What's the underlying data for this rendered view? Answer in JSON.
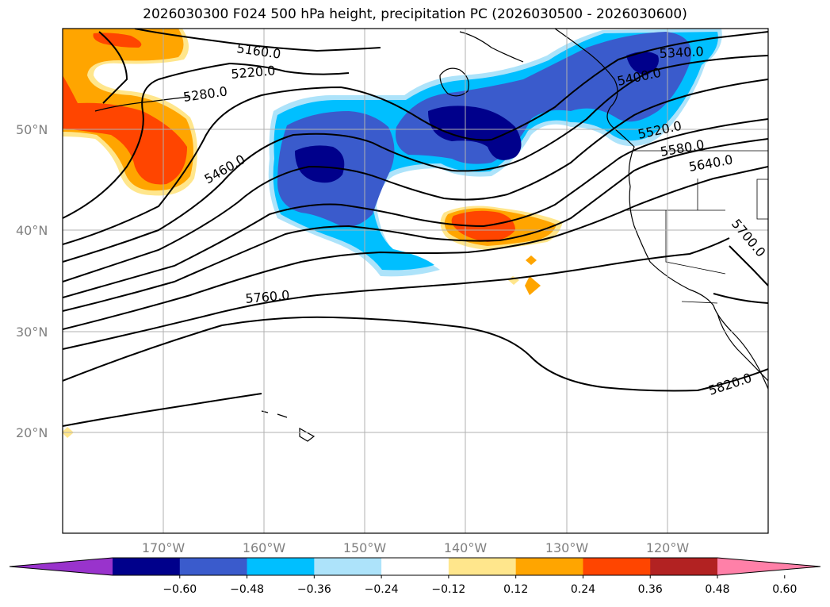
{
  "title": "2026030300 F024 500 hPa height, precipitation PC (2026030500 - 2026030600)",
  "lat_labels": [
    "50°N",
    "40°N",
    "30°N",
    "20°N"
  ],
  "lon_labels": [
    "170°W",
    "160°W",
    "150°W",
    "140°W",
    "130°W",
    "120°W"
  ],
  "contour_labels": [
    "5160.0",
    "5220.0",
    "5280.0",
    "5340.0",
    "5400.0",
    "5460.0",
    "5520.0",
    "5580.0",
    "5640.0",
    "5700.0",
    "5760.0",
    "5820.0"
  ],
  "colorbar": {
    "ticks": [
      "−0.60",
      "−0.48",
      "−0.36",
      "−0.24",
      "−0.12",
      "0.12",
      "0.24",
      "0.36",
      "0.48",
      "0.60"
    ],
    "colors": [
      "#9933cc",
      "#00008b",
      "#3a5bcc",
      "#00bfff",
      "#ade3fa",
      "#ffffff",
      "#ffe68c",
      "#ffa500",
      "#ff4500",
      "#b22222",
      "#ff80a8"
    ]
  }
}
